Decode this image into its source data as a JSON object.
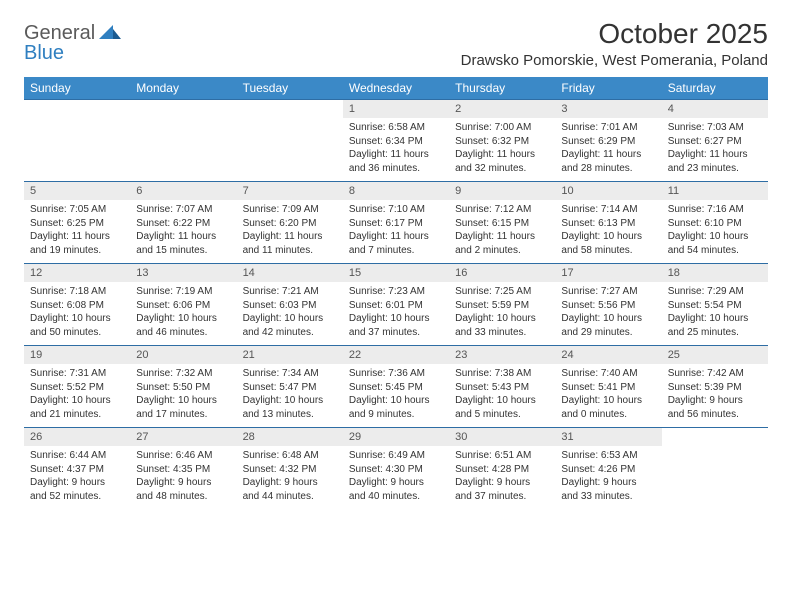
{
  "logo": {
    "general": "General",
    "blue": "Blue"
  },
  "title": "October 2025",
  "location": "Drawsko Pomorskie, West Pomerania, Poland",
  "colors": {
    "header_bg": "#3b89c7",
    "header_text": "#ffffff",
    "daynum_bg": "#ececec",
    "border": "#2e6da4",
    "logo_gray": "#5a5a5a",
    "logo_blue": "#2f7fc0",
    "text": "#333333",
    "background": "#ffffff"
  },
  "typography": {
    "title_fontsize": 28,
    "location_fontsize": 15,
    "header_fontsize": 12,
    "daynum_fontsize": 11,
    "cell_fontsize": 10
  },
  "day_headers": [
    "Sunday",
    "Monday",
    "Tuesday",
    "Wednesday",
    "Thursday",
    "Friday",
    "Saturday"
  ],
  "weeks": [
    [
      null,
      null,
      null,
      {
        "n": "1",
        "sr": "Sunrise: 6:58 AM",
        "ss": "Sunset: 6:34 PM",
        "dl1": "Daylight: 11 hours",
        "dl2": "and 36 minutes."
      },
      {
        "n": "2",
        "sr": "Sunrise: 7:00 AM",
        "ss": "Sunset: 6:32 PM",
        "dl1": "Daylight: 11 hours",
        "dl2": "and 32 minutes."
      },
      {
        "n": "3",
        "sr": "Sunrise: 7:01 AM",
        "ss": "Sunset: 6:29 PM",
        "dl1": "Daylight: 11 hours",
        "dl2": "and 28 minutes."
      },
      {
        "n": "4",
        "sr": "Sunrise: 7:03 AM",
        "ss": "Sunset: 6:27 PM",
        "dl1": "Daylight: 11 hours",
        "dl2": "and 23 minutes."
      }
    ],
    [
      {
        "n": "5",
        "sr": "Sunrise: 7:05 AM",
        "ss": "Sunset: 6:25 PM",
        "dl1": "Daylight: 11 hours",
        "dl2": "and 19 minutes."
      },
      {
        "n": "6",
        "sr": "Sunrise: 7:07 AM",
        "ss": "Sunset: 6:22 PM",
        "dl1": "Daylight: 11 hours",
        "dl2": "and 15 minutes."
      },
      {
        "n": "7",
        "sr": "Sunrise: 7:09 AM",
        "ss": "Sunset: 6:20 PM",
        "dl1": "Daylight: 11 hours",
        "dl2": "and 11 minutes."
      },
      {
        "n": "8",
        "sr": "Sunrise: 7:10 AM",
        "ss": "Sunset: 6:17 PM",
        "dl1": "Daylight: 11 hours",
        "dl2": "and 7 minutes."
      },
      {
        "n": "9",
        "sr": "Sunrise: 7:12 AM",
        "ss": "Sunset: 6:15 PM",
        "dl1": "Daylight: 11 hours",
        "dl2": "and 2 minutes."
      },
      {
        "n": "10",
        "sr": "Sunrise: 7:14 AM",
        "ss": "Sunset: 6:13 PM",
        "dl1": "Daylight: 10 hours",
        "dl2": "and 58 minutes."
      },
      {
        "n": "11",
        "sr": "Sunrise: 7:16 AM",
        "ss": "Sunset: 6:10 PM",
        "dl1": "Daylight: 10 hours",
        "dl2": "and 54 minutes."
      }
    ],
    [
      {
        "n": "12",
        "sr": "Sunrise: 7:18 AM",
        "ss": "Sunset: 6:08 PM",
        "dl1": "Daylight: 10 hours",
        "dl2": "and 50 minutes."
      },
      {
        "n": "13",
        "sr": "Sunrise: 7:19 AM",
        "ss": "Sunset: 6:06 PM",
        "dl1": "Daylight: 10 hours",
        "dl2": "and 46 minutes."
      },
      {
        "n": "14",
        "sr": "Sunrise: 7:21 AM",
        "ss": "Sunset: 6:03 PM",
        "dl1": "Daylight: 10 hours",
        "dl2": "and 42 minutes."
      },
      {
        "n": "15",
        "sr": "Sunrise: 7:23 AM",
        "ss": "Sunset: 6:01 PM",
        "dl1": "Daylight: 10 hours",
        "dl2": "and 37 minutes."
      },
      {
        "n": "16",
        "sr": "Sunrise: 7:25 AM",
        "ss": "Sunset: 5:59 PM",
        "dl1": "Daylight: 10 hours",
        "dl2": "and 33 minutes."
      },
      {
        "n": "17",
        "sr": "Sunrise: 7:27 AM",
        "ss": "Sunset: 5:56 PM",
        "dl1": "Daylight: 10 hours",
        "dl2": "and 29 minutes."
      },
      {
        "n": "18",
        "sr": "Sunrise: 7:29 AM",
        "ss": "Sunset: 5:54 PM",
        "dl1": "Daylight: 10 hours",
        "dl2": "and 25 minutes."
      }
    ],
    [
      {
        "n": "19",
        "sr": "Sunrise: 7:31 AM",
        "ss": "Sunset: 5:52 PM",
        "dl1": "Daylight: 10 hours",
        "dl2": "and 21 minutes."
      },
      {
        "n": "20",
        "sr": "Sunrise: 7:32 AM",
        "ss": "Sunset: 5:50 PM",
        "dl1": "Daylight: 10 hours",
        "dl2": "and 17 minutes."
      },
      {
        "n": "21",
        "sr": "Sunrise: 7:34 AM",
        "ss": "Sunset: 5:47 PM",
        "dl1": "Daylight: 10 hours",
        "dl2": "and 13 minutes."
      },
      {
        "n": "22",
        "sr": "Sunrise: 7:36 AM",
        "ss": "Sunset: 5:45 PM",
        "dl1": "Daylight: 10 hours",
        "dl2": "and 9 minutes."
      },
      {
        "n": "23",
        "sr": "Sunrise: 7:38 AM",
        "ss": "Sunset: 5:43 PM",
        "dl1": "Daylight: 10 hours",
        "dl2": "and 5 minutes."
      },
      {
        "n": "24",
        "sr": "Sunrise: 7:40 AM",
        "ss": "Sunset: 5:41 PM",
        "dl1": "Daylight: 10 hours",
        "dl2": "and 0 minutes."
      },
      {
        "n": "25",
        "sr": "Sunrise: 7:42 AM",
        "ss": "Sunset: 5:39 PM",
        "dl1": "Daylight: 9 hours",
        "dl2": "and 56 minutes."
      }
    ],
    [
      {
        "n": "26",
        "sr": "Sunrise: 6:44 AM",
        "ss": "Sunset: 4:37 PM",
        "dl1": "Daylight: 9 hours",
        "dl2": "and 52 minutes."
      },
      {
        "n": "27",
        "sr": "Sunrise: 6:46 AM",
        "ss": "Sunset: 4:35 PM",
        "dl1": "Daylight: 9 hours",
        "dl2": "and 48 minutes."
      },
      {
        "n": "28",
        "sr": "Sunrise: 6:48 AM",
        "ss": "Sunset: 4:32 PM",
        "dl1": "Daylight: 9 hours",
        "dl2": "and 44 minutes."
      },
      {
        "n": "29",
        "sr": "Sunrise: 6:49 AM",
        "ss": "Sunset: 4:30 PM",
        "dl1": "Daylight: 9 hours",
        "dl2": "and 40 minutes."
      },
      {
        "n": "30",
        "sr": "Sunrise: 6:51 AM",
        "ss": "Sunset: 4:28 PM",
        "dl1": "Daylight: 9 hours",
        "dl2": "and 37 minutes."
      },
      {
        "n": "31",
        "sr": "Sunrise: 6:53 AM",
        "ss": "Sunset: 4:26 PM",
        "dl1": "Daylight: 9 hours",
        "dl2": "and 33 minutes."
      },
      null
    ]
  ]
}
